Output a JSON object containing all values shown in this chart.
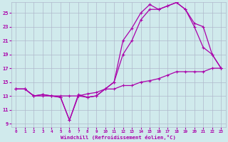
{
  "background_color": "#d0eaec",
  "grid_color": "#b0b8cc",
  "line_color": "#aa00aa",
  "xlim": [
    -0.5,
    23.5
  ],
  "ylim": [
    8.5,
    26.5
  ],
  "xticks": [
    0,
    1,
    2,
    3,
    4,
    5,
    6,
    7,
    8,
    9,
    10,
    11,
    12,
    13,
    14,
    15,
    16,
    17,
    18,
    19,
    20,
    21,
    22,
    23
  ],
  "yticks": [
    9,
    11,
    13,
    15,
    17,
    19,
    21,
    23,
    25
  ],
  "xlabel": "Windchill (Refroidissement éolien,°C)",
  "line1_x": [
    0,
    1,
    2,
    3,
    4,
    5,
    6,
    7,
    8,
    9,
    10,
    11,
    12,
    13,
    14,
    15,
    16,
    17,
    18,
    19,
    20,
    21,
    22,
    23
  ],
  "line1_y": [
    14.0,
    14.0,
    13.0,
    13.2,
    13.0,
    12.8,
    9.5,
    13.2,
    12.8,
    13.0,
    14.0,
    15.0,
    21.0,
    22.8,
    25.0,
    26.2,
    25.5,
    26.0,
    26.5,
    25.5,
    23.0,
    20.0,
    19.0,
    17.0
  ],
  "line2_x": [
    0,
    1,
    2,
    3,
    4,
    5,
    6,
    7,
    8,
    9,
    10,
    11,
    12,
    13,
    14,
    15,
    16,
    17,
    18,
    19,
    20,
    21,
    22,
    23
  ],
  "line2_y": [
    14.0,
    14.0,
    13.0,
    13.2,
    13.0,
    12.8,
    9.5,
    13.0,
    12.8,
    13.0,
    14.0,
    15.0,
    19.0,
    21.0,
    24.0,
    25.5,
    25.5,
    26.0,
    26.5,
    25.5,
    23.5,
    23.0,
    19.0,
    17.0
  ],
  "line3_x": [
    0,
    1,
    2,
    3,
    4,
    5,
    6,
    7,
    8,
    9,
    10,
    11,
    12,
    13,
    14,
    15,
    16,
    17,
    18,
    19,
    20,
    21,
    22,
    23
  ],
  "line3_y": [
    14.0,
    14.0,
    13.0,
    13.0,
    13.0,
    13.0,
    13.0,
    13.0,
    13.3,
    13.5,
    14.0,
    14.0,
    14.5,
    14.5,
    15.0,
    15.2,
    15.5,
    16.0,
    16.5,
    16.5,
    16.5,
    16.5,
    17.0,
    17.0
  ]
}
